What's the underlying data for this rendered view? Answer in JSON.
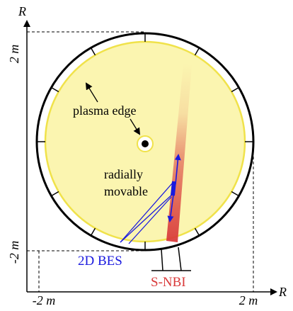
{
  "axes": {
    "y_axis_label": "R",
    "x_axis_label": "R",
    "y_tick_top": "2 m",
    "y_tick_bottom": "-2 m",
    "x_tick_left": "-2 m",
    "x_tick_right": "2 m"
  },
  "annotations": {
    "plasma_edge": "plasma edge",
    "radially_line1": "radially",
    "radially_line2": "movable",
    "bes": "2D BES",
    "nbi": "S-NBI"
  },
  "colors": {
    "plasma_fill": "#fbf5b0",
    "plasma_edge": "#f0e24a",
    "vessel": "#000000",
    "bes": "#1a1adf",
    "nbi": "#d93a3a",
    "dimension_line": "#000000"
  },
  "icons": {
    "arrow": "arrow-icon",
    "center_dot": "magnetic-axis-dot-icon"
  }
}
